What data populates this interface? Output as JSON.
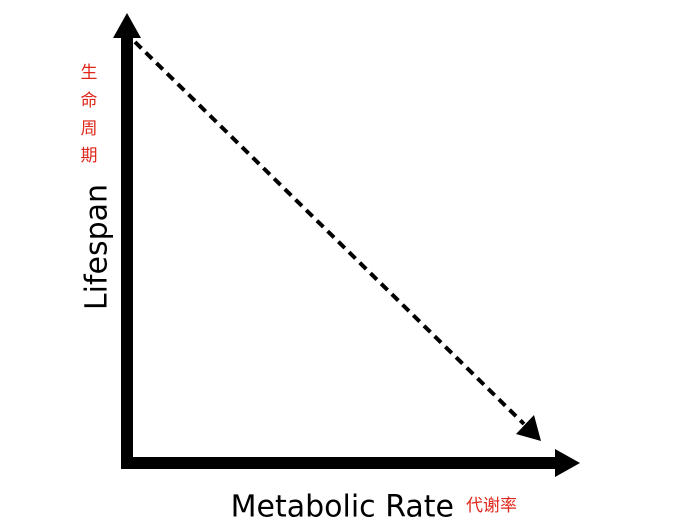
{
  "diagram": {
    "y_axis": {
      "label": "Lifespan",
      "label_cn_chars": [
        "生",
        "命",
        "周",
        "期"
      ]
    },
    "x_axis": {
      "label": "Metabolic Rate",
      "label_cn": "代谢率"
    },
    "trend": {
      "direction": "decreasing",
      "style": "dashed-arrow"
    },
    "colors": {
      "axis": "#000000",
      "cn_label": "#e0261a"
    }
  }
}
